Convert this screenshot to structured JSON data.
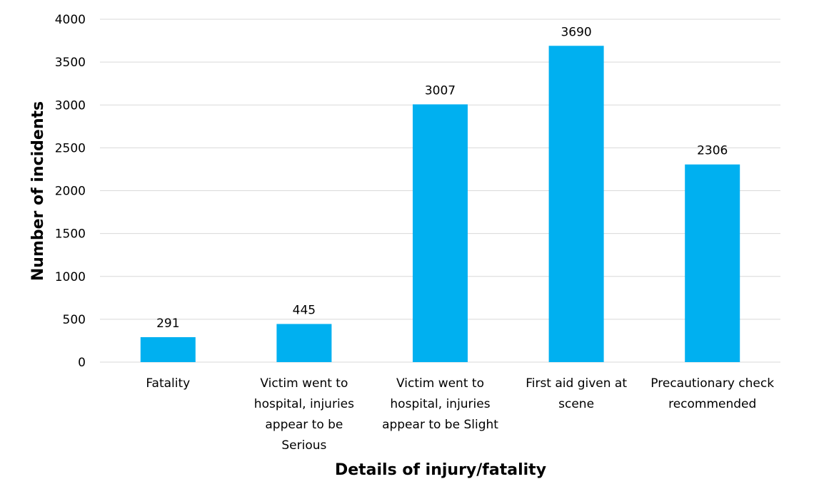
{
  "chart_data": {
    "type": "bar",
    "title": "",
    "xlabel": "Details of injury/fatality",
    "ylabel": "Number of incidents",
    "categories": [
      "Fatality",
      "Victim went to hospital, injuries appear to be Serious",
      "Victim went to hospital, injuries appear to be Slight",
      "First aid given at scene",
      "Precautionary check recommended"
    ],
    "category_lines": [
      [
        "Fatality"
      ],
      [
        "Victim went to",
        "hospital, injuries",
        "appear to be",
        "Serious"
      ],
      [
        "Victim went to",
        "hospital, injuries",
        "appear to be Slight"
      ],
      [
        "First aid given at",
        "scene"
      ],
      [
        "Precautionary check",
        "recommended"
      ]
    ],
    "values": [
      291,
      445,
      3007,
      3690,
      2306
    ],
    "data_labels": [
      "291",
      "445",
      "3007",
      "3690",
      "2306"
    ],
    "ylim": [
      0,
      4000
    ],
    "yticks": [
      0,
      500,
      1000,
      1500,
      2000,
      2500,
      3000,
      3500,
      4000
    ],
    "grid": true,
    "legend": "none",
    "colors": {
      "bar": "#00b0f0"
    }
  }
}
